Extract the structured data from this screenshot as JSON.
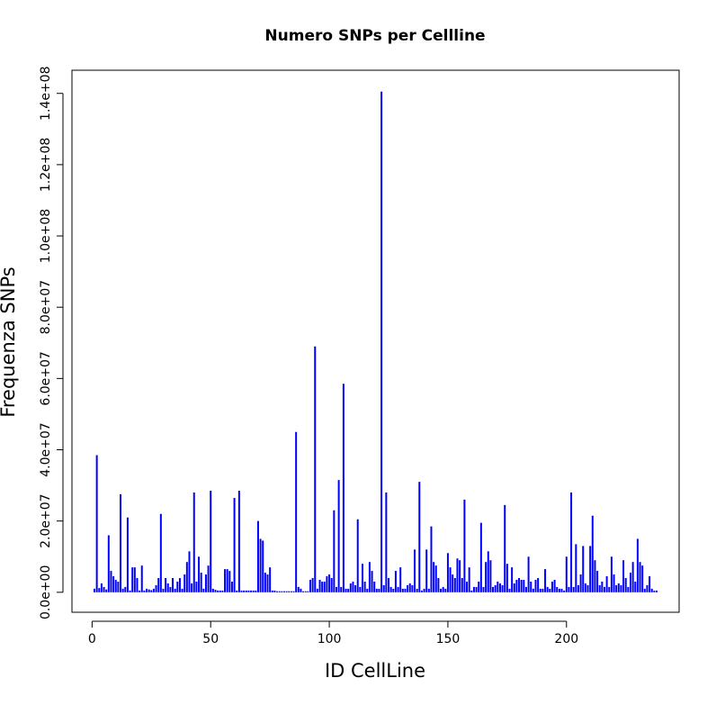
{
  "chart_data": {
    "type": "spike",
    "title": "Numero SNPs per Cellline",
    "xlabel": "ID CellLine",
    "ylabel": "Frequenza SNPs",
    "color": "#0000ff",
    "xlim": [
      -8.48,
      247.48
    ],
    "xticks": [
      0,
      50,
      100,
      150,
      200
    ],
    "ylim": [
      -5600000,
      146500000
    ],
    "yticks": [
      {
        "value": 0,
        "label": "0.0e+00"
      },
      {
        "value": 20000000,
        "label": "2.0e+07"
      },
      {
        "value": 40000000,
        "label": "4.0e+07"
      },
      {
        "value": 60000000,
        "label": "6.0e+07"
      },
      {
        "value": 80000000,
        "label": "8.0e+07"
      },
      {
        "value": 100000000,
        "label": "1.0e+08"
      },
      {
        "value": 120000000,
        "label": "1.2e+08"
      },
      {
        "value": 140000000,
        "label": "1.4e+08"
      }
    ],
    "x": [
      1,
      2,
      3,
      4,
      5,
      6,
      7,
      8,
      9,
      10,
      11,
      12,
      13,
      14,
      15,
      16,
      17,
      18,
      19,
      20,
      21,
      22,
      23,
      24,
      25,
      26,
      27,
      28,
      29,
      30,
      31,
      32,
      33,
      34,
      35,
      36,
      37,
      38,
      39,
      40,
      41,
      42,
      43,
      44,
      45,
      46,
      47,
      48,
      49,
      50,
      51,
      52,
      53,
      54,
      55,
      56,
      57,
      58,
      59,
      60,
      61,
      62,
      63,
      64,
      65,
      66,
      67,
      68,
      69,
      70,
      71,
      72,
      73,
      74,
      75,
      76,
      77,
      78,
      79,
      80,
      81,
      82,
      83,
      84,
      85,
      86,
      87,
      88,
      89,
      90,
      91,
      92,
      93,
      94,
      95,
      96,
      97,
      98,
      99,
      100,
      101,
      102,
      103,
      104,
      105,
      106,
      107,
      108,
      109,
      110,
      111,
      112,
      113,
      114,
      115,
      116,
      117,
      118,
      119,
      120,
      121,
      122,
      123,
      124,
      125,
      126,
      127,
      128,
      129,
      130,
      131,
      132,
      133,
      134,
      135,
      136,
      137,
      138,
      139,
      140,
      141,
      142,
      143,
      144,
      145,
      146,
      147,
      148,
      149,
      150,
      151,
      152,
      153,
      154,
      155,
      156,
      157,
      158,
      159,
      160,
      161,
      162,
      163,
      164,
      165,
      166,
      167,
      168,
      169,
      170,
      171,
      172,
      173,
      174,
      175,
      176,
      177,
      178,
      179,
      180,
      181,
      182,
      183,
      184,
      185,
      186,
      187,
      188,
      189,
      190,
      191,
      192,
      193,
      194,
      195,
      196,
      197,
      198,
      199,
      200,
      201,
      202,
      203,
      204,
      205,
      206,
      207,
      208,
      209,
      210,
      211,
      212,
      213,
      214,
      215,
      216,
      217,
      218,
      219,
      220,
      221,
      222,
      223,
      224,
      225,
      226,
      227,
      228,
      229,
      230,
      231,
      232,
      233,
      234,
      235,
      236,
      237,
      238
    ],
    "values": [
      1000000.0,
      38500000.0,
      1200000.0,
      2500000.0,
      1500000.0,
      800000.0,
      16000000.0,
      6000000.0,
      4500000.0,
      3500000.0,
      3000000.0,
      27500000.0,
      1000000.0,
      1500000.0,
      21000000.0,
      500000.0,
      7000000.0,
      7000000.0,
      4000000.0,
      500000.0,
      7500000.0,
      500000.0,
      1000000.0,
      800000.0,
      600000.0,
      1000000.0,
      2000000.0,
      4000000.0,
      22000000.0,
      1000000.0,
      4000000.0,
      2500000.0,
      1500000.0,
      4000000.0,
      1000000.0,
      3000000.0,
      4000000.0,
      1000000.0,
      5000000.0,
      8500000.0,
      11500000.0,
      2500000.0,
      28000000.0,
      3000000.0,
      10000000.0,
      5500000.0,
      1000000.0,
      5000000.0,
      7500000.0,
      28500000.0,
      1000000.0,
      700000.0,
      500000.0,
      500000.0,
      500000.0,
      6500000.0,
      6500000.0,
      6000000.0,
      3000000.0,
      26500000.0,
      500000.0,
      28500000.0,
      500000.0,
      500000.0,
      500000.0,
      500000.0,
      500000.0,
      500000.0,
      500000.0,
      20000000.0,
      15000000.0,
      14500000.0,
      5500000.0,
      5000000.0,
      7000000.0,
      500000.0,
      500000.0,
      300000.0,
      300000.0,
      300000.0,
      300000.0,
      300000.0,
      300000.0,
      300000.0,
      300000.0,
      45000000.0,
      1500000.0,
      1000000.0,
      300000.0,
      300000.0,
      300000.0,
      3500000.0,
      4000000.0,
      69000000.0,
      1000000.0,
      3500000.0,
      3000000.0,
      3000000.0,
      4500000.0,
      5000000.0,
      4000000.0,
      23000000.0,
      1500000.0,
      31500000.0,
      1500000.0,
      58500000.0,
      1000000.0,
      1000000.0,
      2500000.0,
      3000000.0,
      2000000.0,
      20500000.0,
      1500000.0,
      8000000.0,
      3000000.0,
      1000000.0,
      8500000.0,
      6000000.0,
      3000000.0,
      1000000.0,
      1000000.0,
      140500000.0,
      2000000.0,
      28000000.0,
      4000000.0,
      1500000.0,
      1000000.0,
      6000000.0,
      1500000.0,
      7000000.0,
      1000000.0,
      1000000.0,
      2000000.0,
      2500000.0,
      2000000.0,
      12000000.0,
      1000000.0,
      31000000.0,
      500000.0,
      1000000.0,
      12000000.0,
      1000000.0,
      18500000.0,
      8500000.0,
      7500000.0,
      4000000.0,
      1000000.0,
      1500000.0,
      1000000.0,
      11000000.0,
      7000000.0,
      5000000.0,
      4000000.0,
      9500000.0,
      9000000.0,
      4000000.0,
      26000000.0,
      3000000.0,
      7000000.0,
      500000.0,
      1500000.0,
      1500000.0,
      3000000.0,
      19500000.0,
      1500000.0,
      8500000.0,
      11500000.0,
      9000000.0,
      1500000.0,
      2000000.0,
      3000000.0,
      2500000.0,
      2000000.0,
      24500000.0,
      8000000.0,
      1000000.0,
      7000000.0,
      2500000.0,
      3500000.0,
      4000000.0,
      3500000.0,
      3500000.0,
      1500000.0,
      10000000.0,
      3000000.0,
      1000000.0,
      3500000.0,
      4000000.0,
      1000000.0,
      1000000.0,
      6500000.0,
      1500000.0,
      1000000.0,
      3000000.0,
      3500000.0,
      1500000.0,
      1000000.0,
      1000000.0,
      500000.0,
      10000000.0,
      1500000.0,
      28000000.0,
      1500000.0,
      13500000.0,
      2000000.0,
      5000000.0,
      13000000.0,
      2500000.0,
      2000000.0,
      13000000.0,
      21500000.0,
      9000000.0,
      6000000.0,
      2000000.0,
      3000000.0,
      1500000.0,
      4500000.0,
      1500000.0,
      10000000.0,
      5000000.0,
      2000000.0,
      2500000.0,
      2000000.0,
      9000000.0,
      4000000.0,
      1500000.0,
      5500000.0,
      8500000.0,
      3000000.0,
      15000000.0,
      8500000.0,
      7500000.0,
      1000000.0,
      2000000.0,
      4500000.0,
      1000000.0,
      500000.0,
      500000.0
    ]
  }
}
